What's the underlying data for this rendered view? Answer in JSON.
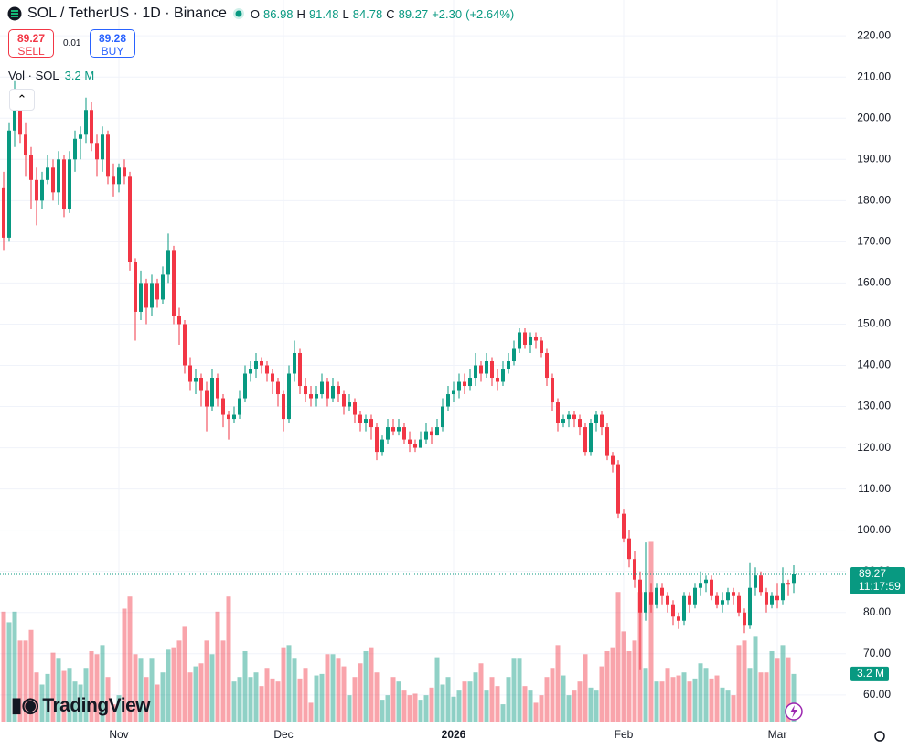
{
  "chart_data": {
    "type": "candlestick",
    "title": "SOL / TetherUS · 1D · Binance",
    "ohlc_prefixes": [
      "O",
      "H",
      "L",
      "C"
    ],
    "change": "+2.30",
    "change_pct": "(+2.64%)",
    "sell": 89.27,
    "sell_label": "SELL",
    "spread": 0.01,
    "buy": 89.28,
    "buy_label": "BUY",
    "volume_title": "Vol · SOL",
    "volume_label": "3.2 M",
    "countdown": "11:17:59",
    "brand": "TradingView",
    "up_color": "#089981",
    "down_color": "#f23645",
    "grid": true,
    "open": [
      183,
      171,
      197,
      205,
      196,
      191,
      185,
      180,
      185,
      188,
      182,
      190,
      178,
      190,
      195,
      196,
      202,
      194,
      190,
      196,
      186,
      184,
      188,
      186,
      165,
      153,
      160,
      154,
      160,
      156,
      162,
      168,
      152,
      150,
      140,
      136,
      137,
      134,
      130,
      137,
      132,
      128,
      127,
      128,
      132,
      138,
      139,
      141,
      140,
      138,
      136,
      133,
      127,
      138,
      143,
      135,
      133,
      132,
      133,
      136,
      132,
      135,
      133,
      130,
      131,
      128,
      126,
      127,
      125,
      119,
      122,
      125,
      124,
      125,
      122,
      121,
      120,
      122,
      124,
      123,
      125,
      130,
      133,
      134,
      136,
      135,
      137,
      140,
      138,
      141,
      137,
      136,
      139,
      141,
      144,
      148,
      145,
      147,
      146,
      143,
      137,
      131,
      126,
      127,
      128,
      127,
      125,
      119,
      126,
      128,
      125,
      118,
      116,
      104,
      98,
      93,
      88,
      80,
      85,
      82,
      86,
      84,
      82,
      79,
      78,
      84,
      82,
      86,
      87,
      88,
      84,
      82,
      83,
      85,
      84,
      80,
      77,
      86,
      89,
      85,
      82,
      84,
      83,
      87,
      86.98
    ],
    "high": [
      187,
      199,
      209,
      207,
      199,
      193,
      188,
      187,
      191,
      190,
      192,
      191,
      192,
      197,
      198,
      205,
      204,
      196,
      198,
      197,
      189,
      189,
      190,
      187,
      166,
      163,
      161,
      162,
      161,
      164,
      172,
      169,
      154,
      151,
      142,
      139,
      138,
      136,
      139,
      138,
      133,
      129,
      130,
      134,
      140,
      141,
      143,
      142,
      141,
      139,
      137,
      134,
      140,
      146,
      144,
      137,
      135,
      135,
      138,
      137,
      137,
      136,
      134,
      133,
      132,
      129,
      128,
      128,
      126,
      123,
      127,
      127,
      127,
      126,
      124,
      122,
      124,
      126,
      125,
      127,
      132,
      135,
      136,
      138,
      138,
      139,
      143,
      141,
      143,
      142,
      139,
      141,
      143,
      146,
      149,
      149,
      148,
      148,
      147,
      144,
      138,
      132,
      128,
      129,
      129,
      128,
      126,
      127,
      129,
      129,
      126,
      119,
      117,
      105,
      100,
      95,
      90,
      97,
      87,
      87,
      87,
      85,
      83,
      80,
      85,
      85,
      87,
      90,
      89,
      89,
      85,
      85,
      86,
      86,
      85,
      81,
      92,
      91,
      90,
      86,
      85,
      87,
      91,
      88,
      91.48
    ],
    "low": [
      168,
      170,
      193,
      194,
      186,
      178,
      174,
      178,
      184,
      180,
      179,
      176,
      177,
      187,
      190,
      194,
      192,
      186,
      187,
      184,
      181,
      182,
      184,
      163,
      146,
      151,
      150,
      152,
      154,
      155,
      160,
      150,
      145,
      138,
      134,
      133,
      130,
      124,
      129,
      130,
      125,
      122,
      126,
      127,
      131,
      136,
      137,
      138,
      136,
      133,
      130,
      124,
      126,
      136,
      133,
      131,
      130,
      130,
      132,
      130,
      131,
      131,
      128,
      129,
      126,
      124,
      124,
      122,
      117,
      118,
      121,
      123,
      123,
      121,
      119,
      119,
      120,
      121,
      121,
      123,
      124,
      129,
      131,
      132,
      133,
      134,
      135,
      136,
      137,
      135,
      134,
      135,
      138,
      140,
      143,
      144,
      143,
      144,
      142,
      135,
      129,
      124,
      125,
      125,
      125,
      123,
      118,
      118,
      124,
      123,
      117,
      114,
      103,
      97,
      91,
      86,
      66,
      78,
      80,
      81,
      82,
      80,
      77,
      76,
      77,
      80,
      81,
      84,
      85,
      83,
      81,
      80,
      82,
      82,
      79,
      75,
      76,
      84,
      84,
      80,
      81,
      81,
      82,
      84,
      84.78
    ],
    "close": [
      171,
      197,
      205,
      196,
      191,
      185,
      180,
      185,
      188,
      182,
      190,
      178,
      190,
      195,
      196,
      202,
      194,
      190,
      196,
      186,
      184,
      188,
      186,
      165,
      153,
      160,
      154,
      160,
      156,
      162,
      168,
      152,
      150,
      140,
      136,
      137,
      134,
      130,
      137,
      132,
      128,
      127,
      128,
      132,
      138,
      139,
      141,
      140,
      138,
      136,
      133,
      127,
      138,
      143,
      135,
      133,
      132,
      133,
      136,
      132,
      135,
      133,
      130,
      131,
      128,
      126,
      127,
      125,
      119,
      122,
      125,
      124,
      125,
      122,
      121,
      120,
      122,
      124,
      123,
      125,
      130,
      133,
      134,
      136,
      135,
      137,
      140,
      138,
      141,
      137,
      136,
      139,
      141,
      144,
      148,
      145,
      147,
      146,
      143,
      137,
      131,
      126,
      127,
      128,
      127,
      125,
      119,
      126,
      128,
      125,
      118,
      116,
      104,
      98,
      93,
      88,
      80,
      85,
      82,
      86,
      84,
      82,
      79,
      78,
      84,
      82,
      86,
      87,
      88,
      84,
      82,
      83,
      85,
      84,
      80,
      77,
      86,
      89,
      85,
      82,
      84,
      83,
      87,
      86.97,
      89.27
    ],
    "volume": [
      7.3,
      6.6,
      7.3,
      5.4,
      5.4,
      6.1,
      3.3,
      2.5,
      3.2,
      4.6,
      4.2,
      3.4,
      3.6,
      2.7,
      2.5,
      3.6,
      4.7,
      4.5,
      5.1,
      3.0,
      1.2,
      1.8,
      7.5,
      8.3,
      4.5,
      4.2,
      3.0,
      4.2,
      2.5,
      3.3,
      4.8,
      4.9,
      5.4,
      6.3,
      3.3,
      3.7,
      3.9,
      5.4,
      4.5,
      7.3,
      5.4,
      8.3,
      2.7,
      3.0,
      4.7,
      3.0,
      3.3,
      2.4,
      3.6,
      2.9,
      2.7,
      4.9,
      5.1,
      4.2,
      2.9,
      3.6,
      1.3,
      3.1,
      3.2,
      4.5,
      4.5,
      4.2,
      3.7,
      1.8,
      3.0,
      3.9,
      4.7,
      4.9,
      3.3,
      1.5,
      1.8,
      3.0,
      2.7,
      2.1,
      1.8,
      1.9,
      1.5,
      1.8,
      2.3,
      4.3,
      2.5,
      3.0,
      1.7,
      2.1,
      2.7,
      2.7,
      3.3,
      3.9,
      2.1,
      3.0,
      2.4,
      1.2,
      3.0,
      4.2,
      4.2,
      2.4,
      2.1,
      1.3,
      1.8,
      3.0,
      3.6,
      5.1,
      3.1,
      1.8,
      2.1,
      2.7,
      4.5,
      2.3,
      2.1,
      3.7,
      4.7,
      4.9,
      8.6,
      6.0,
      4.7,
      5.4,
      8.6,
      3.6,
      11.9,
      2.7,
      2.7,
      3.6,
      3.0,
      3.1,
      3.3,
      2.7,
      2.9,
      3.9,
      3.6,
      2.9,
      3.1,
      2.3,
      2.1,
      1.8,
      5.1,
      5.4,
      3.6,
      5.7,
      3.3,
      3.3,
      4.7,
      4.2,
      5.1,
      4.3,
      3.2
    ],
    "ylim": [
      53.3,
      228.7
    ],
    "yticks": [
      {
        "value": 60,
        "label": "60.00"
      },
      {
        "value": 70,
        "label": "70.00"
      },
      {
        "value": 80,
        "label": "80.00"
      },
      {
        "value": 90,
        "label": "90.00"
      },
      {
        "value": 100,
        "label": "100.00"
      },
      {
        "value": 110,
        "label": "110.00"
      },
      {
        "value": 120,
        "label": "120.00"
      },
      {
        "value": 130,
        "label": "130.00"
      },
      {
        "value": 140,
        "label": "140.00"
      },
      {
        "value": 150,
        "label": "150.00"
      },
      {
        "value": 160,
        "label": "160.00"
      },
      {
        "value": 170,
        "label": "170.00"
      },
      {
        "value": 180,
        "label": "180.00"
      },
      {
        "value": 190,
        "label": "190.00"
      },
      {
        "value": 200,
        "label": "200.00"
      },
      {
        "value": 210,
        "label": "210.00"
      },
      {
        "value": 220,
        "label": "220.00"
      }
    ],
    "xticks": [
      {
        "value": 21,
        "label": "Nov"
      },
      {
        "value": 51,
        "label": "Dec"
      },
      {
        "value": 82,
        "label": "2026"
      },
      {
        "value": 113,
        "label": "Feb"
      },
      {
        "value": 141,
        "label": "Mar"
      }
    ]
  }
}
